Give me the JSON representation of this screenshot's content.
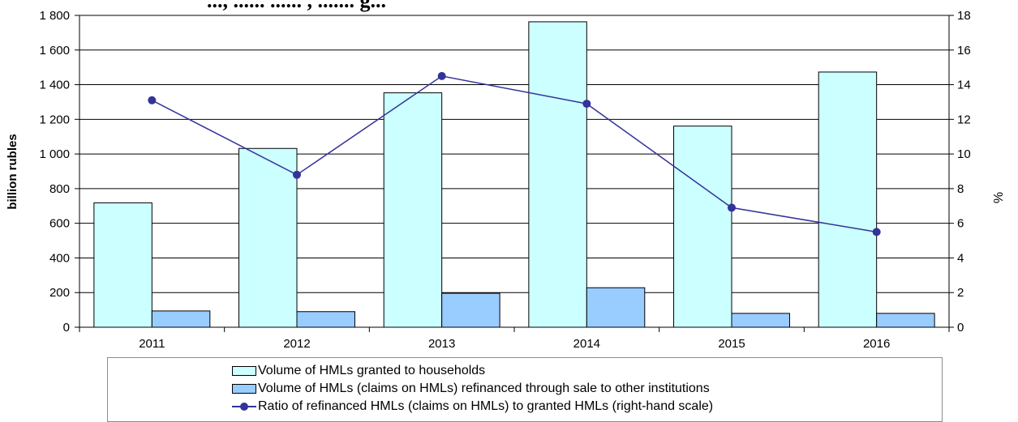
{
  "title": "..., ...... ...... , ....... g...",
  "chart_data": {
    "type": "bar",
    "categories": [
      "2011",
      "2012",
      "2013",
      "2014",
      "2015",
      "2016"
    ],
    "series": [
      {
        "name": "Volume of HMLs granted to households",
        "type": "bar",
        "axis": "left",
        "values": [
          718,
          1032,
          1353,
          1763,
          1161,
          1473
        ]
      },
      {
        "name": "Volume of HMLs (claims on HMLs) refinanced through sale to other institutions",
        "type": "bar",
        "axis": "left",
        "values": [
          94,
          90,
          196,
          228,
          80,
          80
        ]
      },
      {
        "name": "Ratio of refinanced HMLs (claims on HMLs) to granted HMLs  (right-hand scale)",
        "type": "line",
        "axis": "right",
        "values": [
          13.1,
          8.8,
          14.5,
          12.9,
          6.9,
          5.5
        ]
      }
    ],
    "ylabel": "billion rubles",
    "y2label": "%",
    "ylim": [
      0,
      1800
    ],
    "y2lim": [
      0,
      18
    ],
    "yticks": [
      "0",
      "200",
      "400",
      "600",
      "800",
      "1 000",
      "1 200",
      "1 400",
      "1 600",
      "1 800"
    ],
    "y2ticks": [
      "0",
      "2",
      "4",
      "6",
      "8",
      "10",
      "12",
      "14",
      "16",
      "18"
    ],
    "grid": true,
    "legend": "bottom"
  },
  "colors": {
    "bar_granted": "#ccffff",
    "bar_refinanced": "#99ccff",
    "line_ratio": "#333399",
    "grid": "#000000"
  }
}
